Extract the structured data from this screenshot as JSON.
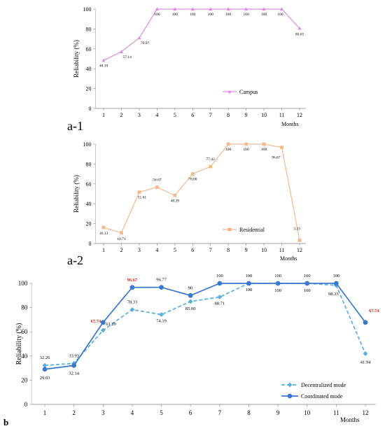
{
  "chart_data": [
    {
      "type": "line",
      "panel_label": "a-1",
      "xlabel": "Months",
      "ylabel": "Reliability (%)",
      "categories": [
        "1",
        "2",
        "3",
        "4",
        "5",
        "6",
        "7",
        "8",
        "9",
        "10",
        "11",
        "12"
      ],
      "ylim": [
        0,
        100
      ],
      "yticks": [
        0,
        20,
        40,
        60,
        80,
        100
      ],
      "grid": false,
      "legend_position": "bottom-right",
      "series": [
        {
          "name": "Campus",
          "color": "#d98ce0",
          "marker": "triangle",
          "values": [
            48.39,
            57.14,
            70.97,
            100,
            100,
            100,
            100,
            100,
            100,
            100,
            100,
            80.65
          ],
          "labels": [
            "48.39",
            "57.14",
            "70.97",
            "100",
            "100",
            "100",
            "100",
            "100",
            "100",
            "100",
            "100",
            "80.65"
          ]
        }
      ]
    },
    {
      "type": "line",
      "panel_label": "a-2",
      "xlabel": "Months",
      "ylabel": "Reliability (%)",
      "categories": [
        "1",
        "2",
        "3",
        "4",
        "5",
        "6",
        "7",
        "8",
        "9",
        "10",
        "11",
        "12"
      ],
      "ylim": [
        0,
        100
      ],
      "yticks": [
        0,
        20,
        40,
        60,
        80,
        100
      ],
      "grid": false,
      "legend_position": "bottom-right",
      "series": [
        {
          "name": "Residential",
          "color": "#f4b98c",
          "marker": "square",
          "values": [
            16.13,
            10.71,
            51.61,
            56.67,
            48.39,
            70.0,
            77.42,
            100,
            100,
            100,
            96.67,
            3.23
          ],
          "labels": [
            "16.13",
            "10.71",
            "51.61",
            "56.67",
            "48.39",
            "70.00",
            "77.42",
            "100",
            "100",
            "100",
            "96.67",
            "3.23"
          ]
        }
      ]
    },
    {
      "type": "line",
      "panel_label": "b",
      "xlabel": "Months",
      "ylabel": "Reliability (%)",
      "categories": [
        "1",
        "2",
        "3",
        "4",
        "5",
        "6",
        "7",
        "8",
        "9",
        "10",
        "11",
        "12"
      ],
      "ylim": [
        0,
        100
      ],
      "yticks": [
        0,
        20,
        40,
        60,
        80,
        100
      ],
      "grid": false,
      "legend_position": "bottom-right",
      "series": [
        {
          "name": "Decentralized mode",
          "color": "#5aaee0",
          "marker": "diamond",
          "dash": true,
          "values": [
            32.26,
            33.93,
            61.29,
            78.33,
            74.19,
            85.0,
            88.71,
            100,
            100,
            100,
            98.33,
            41.94
          ],
          "labels": [
            "32.26",
            "33.93",
            "61.29",
            "78.33",
            "74.19",
            "85.00",
            "88.71",
            "100",
            "100",
            "100",
            "98.33",
            "41.94"
          ]
        },
        {
          "name": "Coordinated mode",
          "color": "#3b78d0",
          "marker": "circle",
          "dash": false,
          "values": [
            29.03,
            32.14,
            67.74,
            96.67,
            96.77,
            90,
            100,
            100,
            100,
            100,
            100,
            67.74
          ],
          "labels": [
            "29.03",
            "32.14",
            "67.74",
            "96.67",
            "96.77",
            "90",
            "100",
            "100",
            "100",
            "100",
            "100",
            "67.74"
          ],
          "highlight_labels": [
            "67.74",
            "96.67",
            "67.74"
          ],
          "highlight_color": "#e02020"
        }
      ]
    }
  ]
}
